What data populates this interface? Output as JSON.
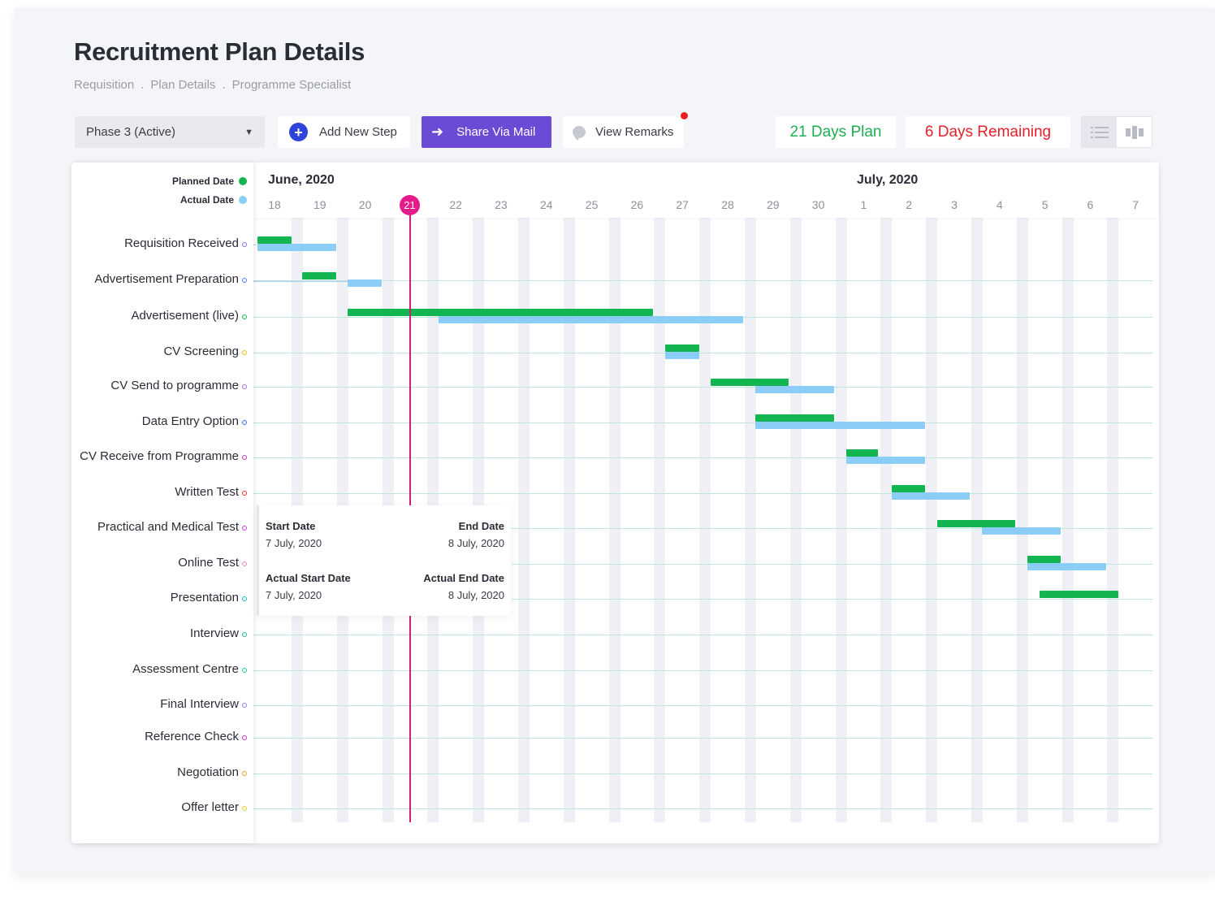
{
  "header": {
    "title": "Recruitment Plan Details",
    "breadcrumb": [
      "Requisition",
      "Plan Details",
      "Programme Specialist"
    ],
    "breadcrumb_sep": "."
  },
  "toolbar": {
    "phase_select": "Phase 3 (Active)",
    "add_step_label": "Add New Step",
    "share_label": "Share Via Mail",
    "remarks_label": "View Remarks",
    "plan_label": "21 Days Plan",
    "remaining_label": "6 Days Remaining"
  },
  "legend": {
    "planned": "Planned  Date",
    "actual": "Actual Date",
    "planned_color": "#12b54f",
    "actual_color": "#8ccdf7"
  },
  "timeline": {
    "months": [
      "June, 2020",
      "July, 2020"
    ],
    "days": [
      "18",
      "19",
      "20",
      "21",
      "22",
      "23",
      "24",
      "25",
      "26",
      "27",
      "28",
      "29",
      "30",
      "1",
      "2",
      "3",
      "4",
      "5",
      "6",
      "7"
    ],
    "today": "21"
  },
  "tasks": [
    {
      "name": "Requisition Received",
      "dot": "#8a6cf0"
    },
    {
      "name": "Advertisement Preparation",
      "dot": "#4a7ef0"
    },
    {
      "name": "Advertisement (live)",
      "dot": "#12b54f"
    },
    {
      "name": "CV Screening",
      "dot": "#f1c40f"
    },
    {
      "name": "CV Send to programme",
      "dot": "#b06be0"
    },
    {
      "name": "Data Entry Option",
      "dot": "#3a6fe8"
    },
    {
      "name": "CV Receive from Programme",
      "dot": "#d233c9"
    },
    {
      "name": "Written Test",
      "dot": "#ee2a2a"
    },
    {
      "name": "Practical and Medical Test",
      "dot": "#c43cd6"
    },
    {
      "name": "Online Test",
      "dot": "#f08aa8"
    },
    {
      "name": "Presentation",
      "dot": "#19b7c9"
    },
    {
      "name": "Interview",
      "dot": "#20b58a"
    },
    {
      "name": "Assessment Centre",
      "dot": "#26c6a0"
    },
    {
      "name": "Final Interview",
      "dot": "#8a7ef0"
    },
    {
      "name": "Reference Check",
      "dot": "#d233c9"
    },
    {
      "name": "Negotiation",
      "dot": "#f0a030"
    },
    {
      "name": "Offer letter",
      "dot": "#e6d030"
    }
  ],
  "tooltip": {
    "start_label": "Start Date",
    "start_value": "7 July, 2020",
    "end_label": "End Date",
    "end_value": "8 July, 2020",
    "actual_start_label": "Actual Start Date",
    "actual_start_value": "7 July, 2020",
    "actual_end_label": "Actual End Date",
    "actual_end_value": "8 July, 2020"
  }
}
